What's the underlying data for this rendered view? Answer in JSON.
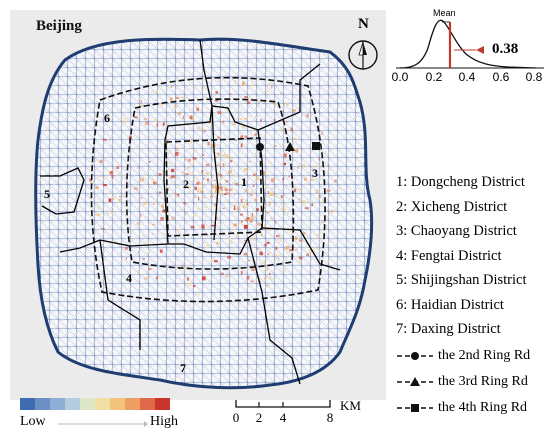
{
  "map": {
    "title": "Beijing",
    "colors": {
      "background": "#ffffff",
      "outside_area": "#e9e9ea",
      "boundary": "#1f3d70",
      "road_network": "#4a6aa8",
      "district_border": "#000000",
      "ring_road": "#111111",
      "mean_line": "#c0392b"
    },
    "district_numbers": [
      "1",
      "2",
      "3",
      "4",
      "5",
      "6",
      "7"
    ],
    "districts": [
      "1: Dongcheng District",
      "2: Xicheng District",
      "3: Chaoyang District",
      "4: Fengtai District",
      "5: Shijingshan District",
      "6: Haidian District",
      "7: Daxing District"
    ],
    "ring_roads": [
      {
        "label": "the 2nd Ring Rd",
        "marker": "circle"
      },
      {
        "label": "the 3rd Ring Rd",
        "marker": "triangle"
      },
      {
        "label": "the 4th Ring Rd",
        "marker": "square"
      }
    ],
    "color_legend": {
      "low": "Low",
      "high": "High",
      "swatches": [
        "#3f6cb0",
        "#6c8fc4",
        "#8faed3",
        "#b5cde0",
        "#dde6c6",
        "#f1e0a6",
        "#f3c27c",
        "#ee9e61",
        "#e06a48",
        "#c9342d"
      ]
    },
    "scale_bar": {
      "ticks": [
        "0",
        "2",
        "4",
        "8"
      ],
      "unit": "KM"
    },
    "north_arrow": {
      "label": "N",
      "icon": "north-arrow-icon"
    },
    "histogram": {
      "mean_label": "Mean",
      "mean_value": "0.38",
      "x_ticks": [
        "0.0",
        "0.2",
        "0.4",
        "0.6",
        "0.8"
      ]
    }
  }
}
